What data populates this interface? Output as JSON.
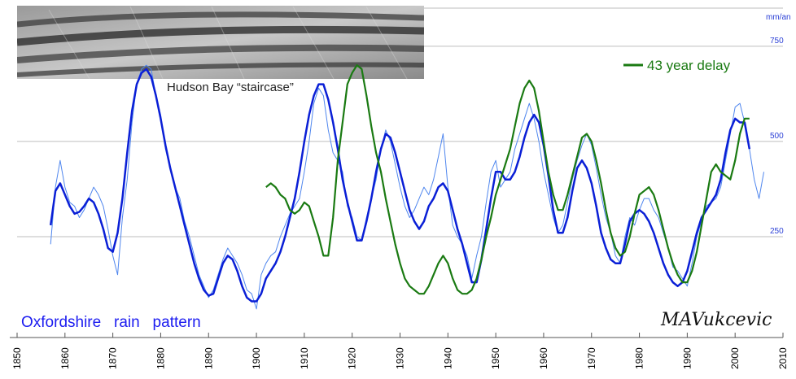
{
  "chart_data": {
    "type": "line",
    "title": "Oxfordshire   rain   pattern",
    "unit_label": "mm/an",
    "xlim": [
      1850,
      2010
    ],
    "ylim": [
      0,
      850
    ],
    "x_ticks": [
      1850,
      1860,
      1870,
      1880,
      1890,
      1900,
      1910,
      1920,
      1930,
      1940,
      1950,
      1960,
      1970,
      1980,
      1990,
      2000,
      2010
    ],
    "y_ticks": [
      250,
      500,
      750
    ],
    "grid": "horizontal",
    "signature": "MAVukcevic",
    "inset": {
      "caption": "Hudson Bay “staircase”"
    },
    "legend": {
      "position": "top-right",
      "entries": [
        {
          "label": "43 year delay",
          "color": "#1a7a12"
        }
      ]
    },
    "series": [
      {
        "key": "raw",
        "color": "#4f86ee",
        "x": [
          1857,
          1858,
          1859,
          1860,
          1861,
          1862,
          1863,
          1864,
          1865,
          1866,
          1867,
          1868,
          1869,
          1870,
          1871,
          1872,
          1873,
          1874,
          1875,
          1876,
          1877,
          1878,
          1879,
          1880,
          1881,
          1882,
          1883,
          1884,
          1885,
          1886,
          1887,
          1888,
          1889,
          1890,
          1891,
          1892,
          1893,
          1894,
          1895,
          1896,
          1897,
          1898,
          1899,
          1900,
          1901,
          1902,
          1903,
          1904,
          1905,
          1906,
          1907,
          1908,
          1909,
          1910,
          1911,
          1912,
          1913,
          1914,
          1915,
          1916,
          1917,
          1918,
          1919,
          1920,
          1921,
          1922,
          1923,
          1924,
          1925,
          1926,
          1927,
          1928,
          1929,
          1930,
          1931,
          1932,
          1933,
          1934,
          1935,
          1936,
          1937,
          1938,
          1939,
          1940,
          1941,
          1942,
          1943,
          1944,
          1945,
          1946,
          1947,
          1948,
          1949,
          1950,
          1951,
          1952,
          1953,
          1954,
          1955,
          1956,
          1957,
          1958,
          1959,
          1960,
          1961,
          1962,
          1963,
          1964,
          1965,
          1966,
          1967,
          1968,
          1969,
          1970,
          1971,
          1972,
          1973,
          1974,
          1975,
          1976,
          1977,
          1978,
          1979,
          1980,
          1981,
          1982,
          1983,
          1984,
          1985,
          1986,
          1987,
          1988,
          1989,
          1990,
          1991,
          1992,
          1993,
          1994,
          1995,
          1996,
          1997,
          1998,
          1999,
          2000,
          2001,
          2002,
          2003,
          2004,
          2005,
          2006
        ],
        "y": [
          230,
          380,
          450,
          380,
          340,
          330,
          300,
          320,
          350,
          380,
          360,
          330,
          270,
          200,
          150,
          300,
          400,
          550,
          650,
          690,
          700,
          690,
          620,
          570,
          480,
          430,
          380,
          350,
          290,
          250,
          200,
          150,
          120,
          90,
          110,
          150,
          190,
          220,
          200,
          180,
          150,
          110,
          100,
          60,
          150,
          180,
          200,
          210,
          250,
          280,
          310,
          330,
          350,
          420,
          500,
          600,
          640,
          620,
          530,
          470,
          450,
          420,
          330,
          300,
          250,
          240,
          300,
          350,
          400,
          480,
          530,
          500,
          440,
          380,
          330,
          300,
          320,
          350,
          380,
          360,
          400,
          460,
          520,
          380,
          280,
          250,
          230,
          200,
          140,
          200,
          250,
          340,
          420,
          450,
          380,
          400,
          420,
          480,
          520,
          560,
          600,
          560,
          500,
          420,
          360,
          300,
          260,
          280,
          340,
          400,
          450,
          490,
          520,
          490,
          430,
          360,
          300,
          260,
          200,
          180,
          250,
          300,
          280,
          320,
          350,
          350,
          320,
          300,
          260,
          220,
          170,
          160,
          140,
          120,
          180,
          250,
          290,
          330,
          340,
          350,
          380,
          450,
          520,
          590,
          600,
          550,
          480,
          400,
          350,
          420
        ]
      },
      {
        "key": "smoothed",
        "color": "#0a1fd6",
        "x": [
          1857,
          1858,
          1859,
          1860,
          1861,
          1862,
          1863,
          1864,
          1865,
          1866,
          1867,
          1868,
          1869,
          1870,
          1871,
          1872,
          1873,
          1874,
          1875,
          1876,
          1877,
          1878,
          1879,
          1880,
          1881,
          1882,
          1883,
          1884,
          1885,
          1886,
          1887,
          1888,
          1889,
          1890,
          1891,
          1892,
          1893,
          1894,
          1895,
          1896,
          1897,
          1898,
          1899,
          1900,
          1901,
          1902,
          1903,
          1904,
          1905,
          1906,
          1907,
          1908,
          1909,
          1910,
          1911,
          1912,
          1913,
          1914,
          1915,
          1916,
          1917,
          1918,
          1919,
          1920,
          1921,
          1922,
          1923,
          1924,
          1925,
          1926,
          1927,
          1928,
          1929,
          1930,
          1931,
          1932,
          1933,
          1934,
          1935,
          1936,
          1937,
          1938,
          1939,
          1940,
          1941,
          1942,
          1943,
          1944,
          1945,
          1946,
          1947,
          1948,
          1949,
          1950,
          1951,
          1952,
          1953,
          1954,
          1955,
          1956,
          1957,
          1958,
          1959,
          1960,
          1961,
          1962,
          1963,
          1964,
          1965,
          1966,
          1967,
          1968,
          1969,
          1970,
          1971,
          1972,
          1973,
          1974,
          1975,
          1976,
          1977,
          1978,
          1979,
          1980,
          1981,
          1982,
          1983,
          1984,
          1985,
          1986,
          1987,
          1988,
          1989,
          1990,
          1991,
          1992,
          1993,
          1994,
          1995,
          1996,
          1997,
          1998,
          1999,
          2000,
          2001,
          2002,
          2003
        ],
        "y": [
          280,
          370,
          390,
          360,
          330,
          310,
          315,
          330,
          350,
          340,
          310,
          270,
          220,
          210,
          260,
          350,
          470,
          580,
          650,
          680,
          690,
          670,
          620,
          560,
          490,
          430,
          380,
          330,
          280,
          230,
          180,
          140,
          110,
          95,
          100,
          140,
          180,
          200,
          190,
          160,
          120,
          90,
          80,
          80,
          100,
          140,
          160,
          180,
          210,
          250,
          300,
          350,
          420,
          500,
          570,
          620,
          650,
          650,
          610,
          550,
          480,
          400,
          340,
          290,
          240,
          240,
          290,
          350,
          420,
          480,
          520,
          510,
          470,
          420,
          370,
          320,
          290,
          270,
          290,
          330,
          350,
          380,
          390,
          370,
          320,
          270,
          230,
          180,
          130,
          130,
          190,
          270,
          350,
          420,
          420,
          400,
          400,
          420,
          460,
          510,
          550,
          570,
          550,
          490,
          410,
          320,
          260,
          260,
          300,
          370,
          430,
          450,
          430,
          390,
          330,
          260,
          220,
          190,
          180,
          180,
          230,
          290,
          310,
          320,
          310,
          290,
          260,
          220,
          180,
          150,
          130,
          120,
          130,
          160,
          210,
          260,
          300,
          320,
          340,
          360,
          400,
          470,
          530,
          560,
          550,
          550,
          480
        ]
      },
      {
        "key": "delay",
        "color": "#1a7a12",
        "x": [
          1902,
          1903,
          1904,
          1905,
          1906,
          1907,
          1908,
          1909,
          1910,
          1911,
          1912,
          1913,
          1914,
          1915,
          1916,
          1917,
          1918,
          1919,
          1920,
          1921,
          1922,
          1923,
          1924,
          1925,
          1926,
          1927,
          1928,
          1929,
          1930,
          1931,
          1932,
          1933,
          1934,
          1935,
          1936,
          1937,
          1938,
          1939,
          1940,
          1941,
          1942,
          1943,
          1944,
          1945,
          1946,
          1947,
          1948,
          1949,
          1950,
          1951,
          1952,
          1953,
          1954,
          1955,
          1956,
          1957,
          1958,
          1959,
          1960,
          1961,
          1962,
          1963,
          1964,
          1965,
          1966,
          1967,
          1968,
          1969,
          1970,
          1971,
          1972,
          1973,
          1974,
          1975,
          1976,
          1977,
          1978,
          1979,
          1980,
          1981,
          1982,
          1983,
          1984,
          1985,
          1986,
          1987,
          1988,
          1989,
          1990,
          1991,
          1992,
          1993,
          1994,
          1995,
          1996,
          1997,
          1998,
          1999,
          2000,
          2001,
          2002,
          2003
        ],
        "y": [
          380,
          390,
          380,
          360,
          350,
          320,
          310,
          320,
          340,
          330,
          290,
          250,
          200,
          200,
          300,
          450,
          550,
          650,
          680,
          700,
          690,
          620,
          540,
          470,
          420,
          350,
          290,
          230,
          180,
          140,
          120,
          110,
          100,
          100,
          120,
          150,
          180,
          200,
          180,
          140,
          110,
          100,
          100,
          110,
          140,
          190,
          250,
          300,
          360,
          400,
          440,
          480,
          540,
          600,
          640,
          660,
          640,
          580,
          500,
          420,
          360,
          320,
          320,
          360,
          410,
          460,
          510,
          520,
          500,
          450,
          390,
          320,
          260,
          220,
          200,
          210,
          250,
          310,
          360,
          370,
          380,
          360,
          320,
          270,
          220,
          180,
          150,
          130,
          130,
          160,
          210,
          280,
          350,
          420,
          440,
          420,
          410,
          400,
          450,
          520,
          560,
          560
        ]
      }
    ]
  }
}
